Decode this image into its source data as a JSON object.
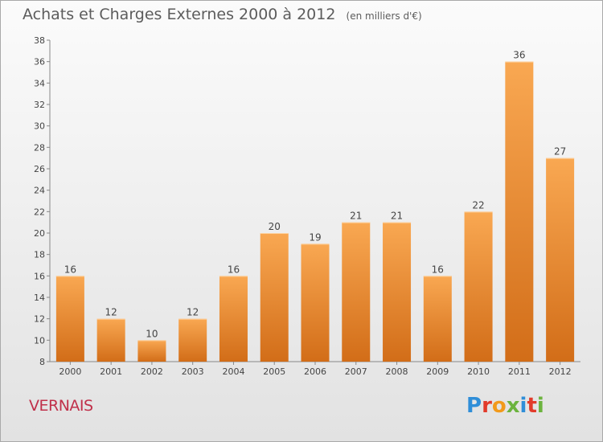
{
  "header": {
    "title": "Achats et Charges Externes 2000 à 2012",
    "subtitle": "(en milliers d'€)"
  },
  "footer": {
    "place": "VERNAIS",
    "logo": "Proxiti"
  },
  "colors": {
    "bar_light": "#f8a54c",
    "bar_dark": "#d9741a",
    "title_text": "#5c5c5c",
    "place_text": "#c0304a"
  },
  "chart_data": {
    "type": "bar",
    "title": "Achats et Charges Externes 2000 à 2012",
    "subtitle": "(en milliers d'€)",
    "categories": [
      "2000",
      "2001",
      "2002",
      "2003",
      "2004",
      "2005",
      "2006",
      "2007",
      "2008",
      "2009",
      "2010",
      "2011",
      "2012"
    ],
    "values": [
      16,
      12,
      10,
      12,
      16,
      20,
      19,
      21,
      21,
      16,
      22,
      36,
      27
    ],
    "ylim": [
      8,
      38
    ],
    "yticks": [
      8,
      10,
      12,
      14,
      16,
      18,
      20,
      22,
      24,
      26,
      28,
      30,
      32,
      34,
      36,
      38
    ],
    "grid": false,
    "data_labels": true
  }
}
